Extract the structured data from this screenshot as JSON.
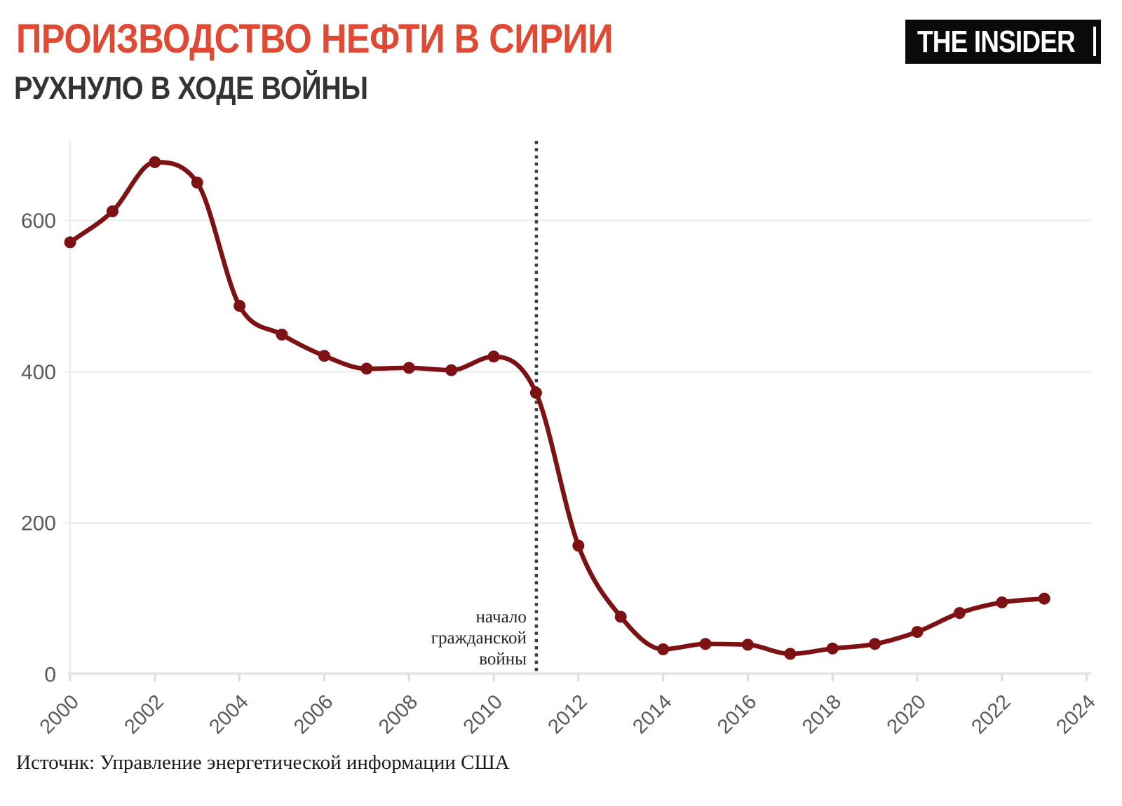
{
  "header": {
    "title": "ПРОИЗВОДСТВО НЕФТИ В СИРИИ",
    "subtitle": "РУХНУЛО В ХОДЕ ВОЙНЫ",
    "logo_text": "THE INSIDER"
  },
  "footer": {
    "source": "Источнк: Управление энергетической информации США"
  },
  "colors": {
    "title": "#e04a35",
    "subtitle": "#333333",
    "line": "#7d1214",
    "grid": "#ededed",
    "axis_line": "#e4e4e4",
    "tick": "#dcdcdc",
    "axis_text": "#595959",
    "event_line": "#3d3d3d",
    "annotation_text": "#222222",
    "logo_bg": "#0a0a0a",
    "logo_fg": "#ffffff"
  },
  "chart_data": {
    "type": "line",
    "title": "ПРОИЗВОДСТВО НЕФТИ В СИРИИ",
    "subtitle": "РУХНУЛО В ХОДЕ ВОЙНЫ",
    "x": [
      2000,
      2001,
      2002,
      2003,
      2004,
      2005,
      2006,
      2007,
      2008,
      2009,
      2010,
      2011,
      2012,
      2013,
      2014,
      2015,
      2016,
      2017,
      2018,
      2019,
      2020,
      2021,
      2022,
      2023
    ],
    "values": [
      571,
      612,
      677,
      650,
      487,
      449,
      421,
      404,
      405,
      402,
      420,
      372,
      170,
      76,
      33,
      40,
      39,
      27,
      34,
      40,
      56,
      81,
      95,
      100
    ],
    "xlabel": "",
    "ylabel": "",
    "x_ticks": [
      2000,
      2002,
      2004,
      2006,
      2008,
      2010,
      2012,
      2014,
      2016,
      2018,
      2020,
      2022,
      2024
    ],
    "y_ticks": [
      0,
      200,
      400,
      600
    ],
    "xlim": [
      2000,
      2024
    ],
    "ylim": [
      0,
      707
    ],
    "grid": true,
    "legend": "none",
    "marker": "circle",
    "event_line_x": 2011,
    "annotation_lines": [
      "начало",
      "гражданской",
      "войны"
    ],
    "source": "Источнк: Управление энергетической информации США"
  }
}
